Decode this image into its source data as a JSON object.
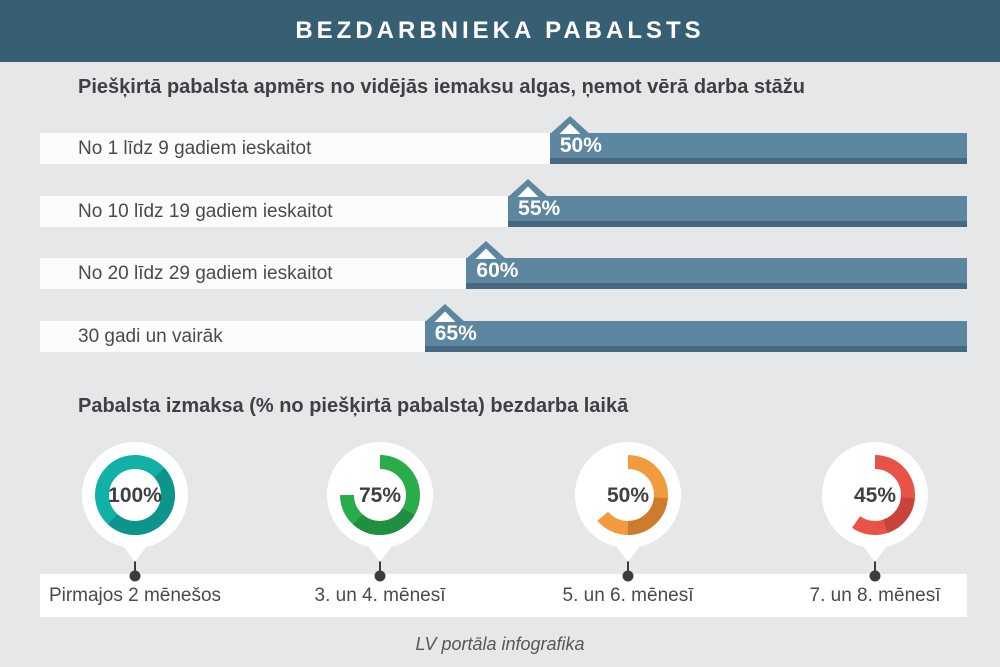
{
  "header": {
    "title": "BEZDARBNIEKA PABALSTS"
  },
  "section_tenure": {
    "title": "Piešķirtā pabalsta apmērs no vidējās iemaksu algas, ņemot vērā darba stāžu",
    "rows": [
      {
        "label": "No 1 līdz 9 gadiem ieskaitot",
        "value": "50%",
        "pct": 50
      },
      {
        "label": "No 10 līdz 19 gadiem ieskaitot",
        "value": "55%",
        "pct": 55
      },
      {
        "label": "No 20 līdz 29 gadiem ieskaitot",
        "value": "60%",
        "pct": 60
      },
      {
        "label": "30 gadi un vairāk",
        "value": "65%",
        "pct": 65
      }
    ],
    "bar_color": "#5d86a0",
    "bar_shadow_color": "#48687f"
  },
  "section_payout": {
    "title": "Pabalsta izmaksa (% no piešķirtā pabalsta) bezdarba laikā",
    "items": [
      {
        "value": "100%",
        "pct": 100,
        "label": "Pirmajos 2 mēnešos",
        "color": "#12b1a7",
        "color_dark": "#0d958c",
        "shade_from_deg": 40,
        "shade_to_deg": 232,
        "fold_from_deg": 0,
        "fold_to_deg": 0
      },
      {
        "value": "75%",
        "pct": 75,
        "label": "3. un 4. mēnesī",
        "color": "#28ad4a",
        "color_dark": "#1f9040",
        "shade_from_deg": 120,
        "shade_to_deg": 225,
        "fold_from_deg": 0,
        "fold_to_deg": 0
      },
      {
        "value": "50%",
        "pct": 50,
        "label": "5. un 6. mēnesī",
        "color": "#f19b3e",
        "color_dark": "#cd7c2e",
        "shade_from_deg": 95,
        "shade_to_deg": 180,
        "fold_from_deg": 180,
        "fold_to_deg": 230
      },
      {
        "value": "45%",
        "pct": 45,
        "label": "7. un 8. mēnesī",
        "color": "#e95347",
        "color_dark": "#c9433a",
        "shade_from_deg": 95,
        "shade_to_deg": 162,
        "fold_from_deg": 162,
        "fold_to_deg": 215
      }
    ]
  },
  "footer": {
    "credit": "LV portāla infografika"
  },
  "colors": {
    "header_bg": "#365f73",
    "background": "#e6e7e9",
    "bar": "#5d86a0",
    "bar_shadow": "#48687f"
  },
  "chart_data": [
    {
      "type": "bar",
      "orientation": "horizontal",
      "title": "Piešķirtā pabalsta apmērs no vidējās iemaksu algas, ņemot vērā darba stāžu",
      "categories": [
        "No 1 līdz 9 gadiem ieskaitot",
        "No 10 līdz 19 gadiem ieskaitot",
        "No 20 līdz 29 gadiem ieskaitot",
        "30 gadi un vairāk"
      ],
      "values": [
        50,
        55,
        60,
        65
      ],
      "unit": "%",
      "data_labels": [
        "50%",
        "55%",
        "60%",
        "65%"
      ],
      "bar_color": "#5d86a0"
    },
    {
      "type": "pie",
      "variant": "donut",
      "title": "Pabalsta izmaksa (% no piešķirtā pabalsta) bezdarba laikā",
      "categories": [
        "Pirmajos 2 mēnešos",
        "3. un 4. mēnesī",
        "5. un 6. mēnesī",
        "7. un 8. mēnesī"
      ],
      "values": [
        100,
        75,
        50,
        45
      ],
      "unit": "%",
      "data_labels": [
        "100%",
        "75%",
        "50%",
        "45%"
      ],
      "colors": [
        "#12b1a7",
        "#28ad4a",
        "#f19b3e",
        "#e95347"
      ]
    }
  ]
}
